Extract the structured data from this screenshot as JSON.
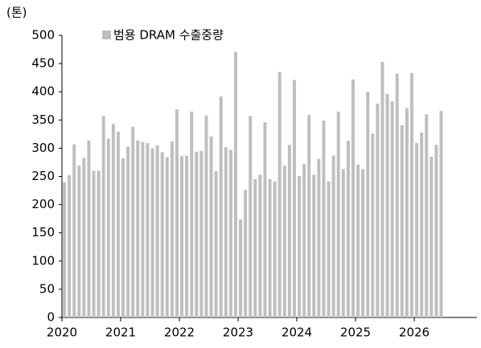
{
  "chart_data": {
    "type": "bar",
    "y_axis_label": "(톤)",
    "categories": [
      "2020",
      null,
      null,
      null,
      null,
      null,
      null,
      null,
      null,
      null,
      null,
      null,
      "2021",
      null,
      null,
      null,
      null,
      null,
      null,
      null,
      null,
      null,
      null,
      null,
      "2022",
      null,
      null,
      null,
      null,
      null,
      null,
      null,
      null,
      null,
      null,
      null,
      "2023",
      null,
      null,
      null,
      null,
      null,
      null,
      null,
      null,
      null,
      null,
      null,
      "2024",
      null,
      null,
      null,
      null,
      null,
      null,
      null,
      null,
      null,
      null,
      null,
      "2025",
      null,
      null,
      null,
      null,
      null,
      null,
      null,
      null,
      null,
      null,
      null,
      "2026",
      null,
      null,
      null,
      null,
      null
    ],
    "series": [
      {
        "name": "범용 DRAM 수출중량",
        "color": "#bfbfbf",
        "values": [
          240,
          252,
          307,
          269,
          283,
          314,
          260,
          260,
          357,
          317,
          343,
          329,
          282,
          303,
          338,
          314,
          311,
          309,
          300,
          305,
          293,
          284,
          312,
          369,
          286,
          287,
          365,
          294,
          295,
          358,
          321,
          259,
          392,
          302,
          297,
          471,
          174,
          226,
          357,
          245,
          253,
          346,
          245,
          241,
          435,
          269,
          306,
          421,
          251,
          272,
          359,
          253,
          281,
          349,
          241,
          287,
          365,
          263,
          313,
          422,
          271,
          263,
          400,
          326,
          379,
          453,
          396,
          383,
          432,
          341,
          371,
          433,
          309,
          328,
          360,
          285,
          306,
          366
        ]
      }
    ],
    "ylim": [
      0,
      500
    ],
    "yticks": [
      0,
      50,
      100,
      150,
      200,
      250,
      300,
      350,
      400,
      450,
      500
    ],
    "grid": false,
    "legend": "top"
  }
}
